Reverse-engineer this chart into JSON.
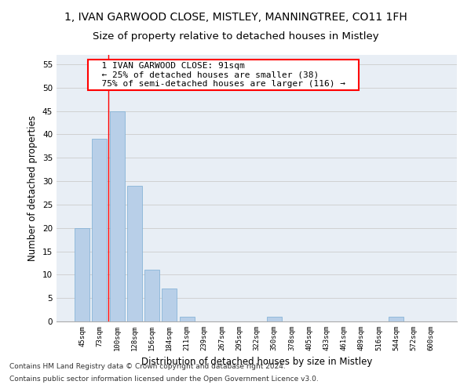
{
  "title1": "1, IVAN GARWOOD CLOSE, MISTLEY, MANNINGTREE, CO11 1FH",
  "title2": "Size of property relative to detached houses in Mistley",
  "xlabel": "Distribution of detached houses by size in Mistley",
  "ylabel": "Number of detached properties",
  "footer1": "Contains HM Land Registry data © Crown copyright and database right 2024.",
  "footer2": "Contains public sector information licensed under the Open Government Licence v3.0.",
  "bin_labels": [
    "45sqm",
    "73sqm",
    "100sqm",
    "128sqm",
    "156sqm",
    "184sqm",
    "211sqm",
    "239sqm",
    "267sqm",
    "295sqm",
    "322sqm",
    "350sqm",
    "378sqm",
    "405sqm",
    "433sqm",
    "461sqm",
    "489sqm",
    "516sqm",
    "544sqm",
    "572sqm",
    "600sqm"
  ],
  "bin_values": [
    20,
    39,
    45,
    29,
    11,
    7,
    1,
    0,
    0,
    0,
    0,
    1,
    0,
    0,
    0,
    0,
    0,
    0,
    1,
    0,
    0
  ],
  "bar_color": "#b8cfe8",
  "bar_edge_color": "#7aadd4",
  "property_line_bin_index": 1.5,
  "annotation_text": "  1 IVAN GARWOOD CLOSE: 91sqm  \n  ← 25% of detached houses are smaller (38)  \n  75% of semi-detached houses are larger (116) →  ",
  "annotation_box_color": "white",
  "annotation_box_edge_color": "red",
  "ylim": [
    0,
    57
  ],
  "yticks": [
    0,
    5,
    10,
    15,
    20,
    25,
    30,
    35,
    40,
    45,
    50,
    55
  ],
  "grid_color": "#cccccc",
  "bg_color": "#e8eef5",
  "title1_fontsize": 10,
  "title2_fontsize": 9.5,
  "annot_fontsize": 8,
  "xlabel_fontsize": 8.5,
  "ylabel_fontsize": 8.5,
  "footer_fontsize": 6.5
}
